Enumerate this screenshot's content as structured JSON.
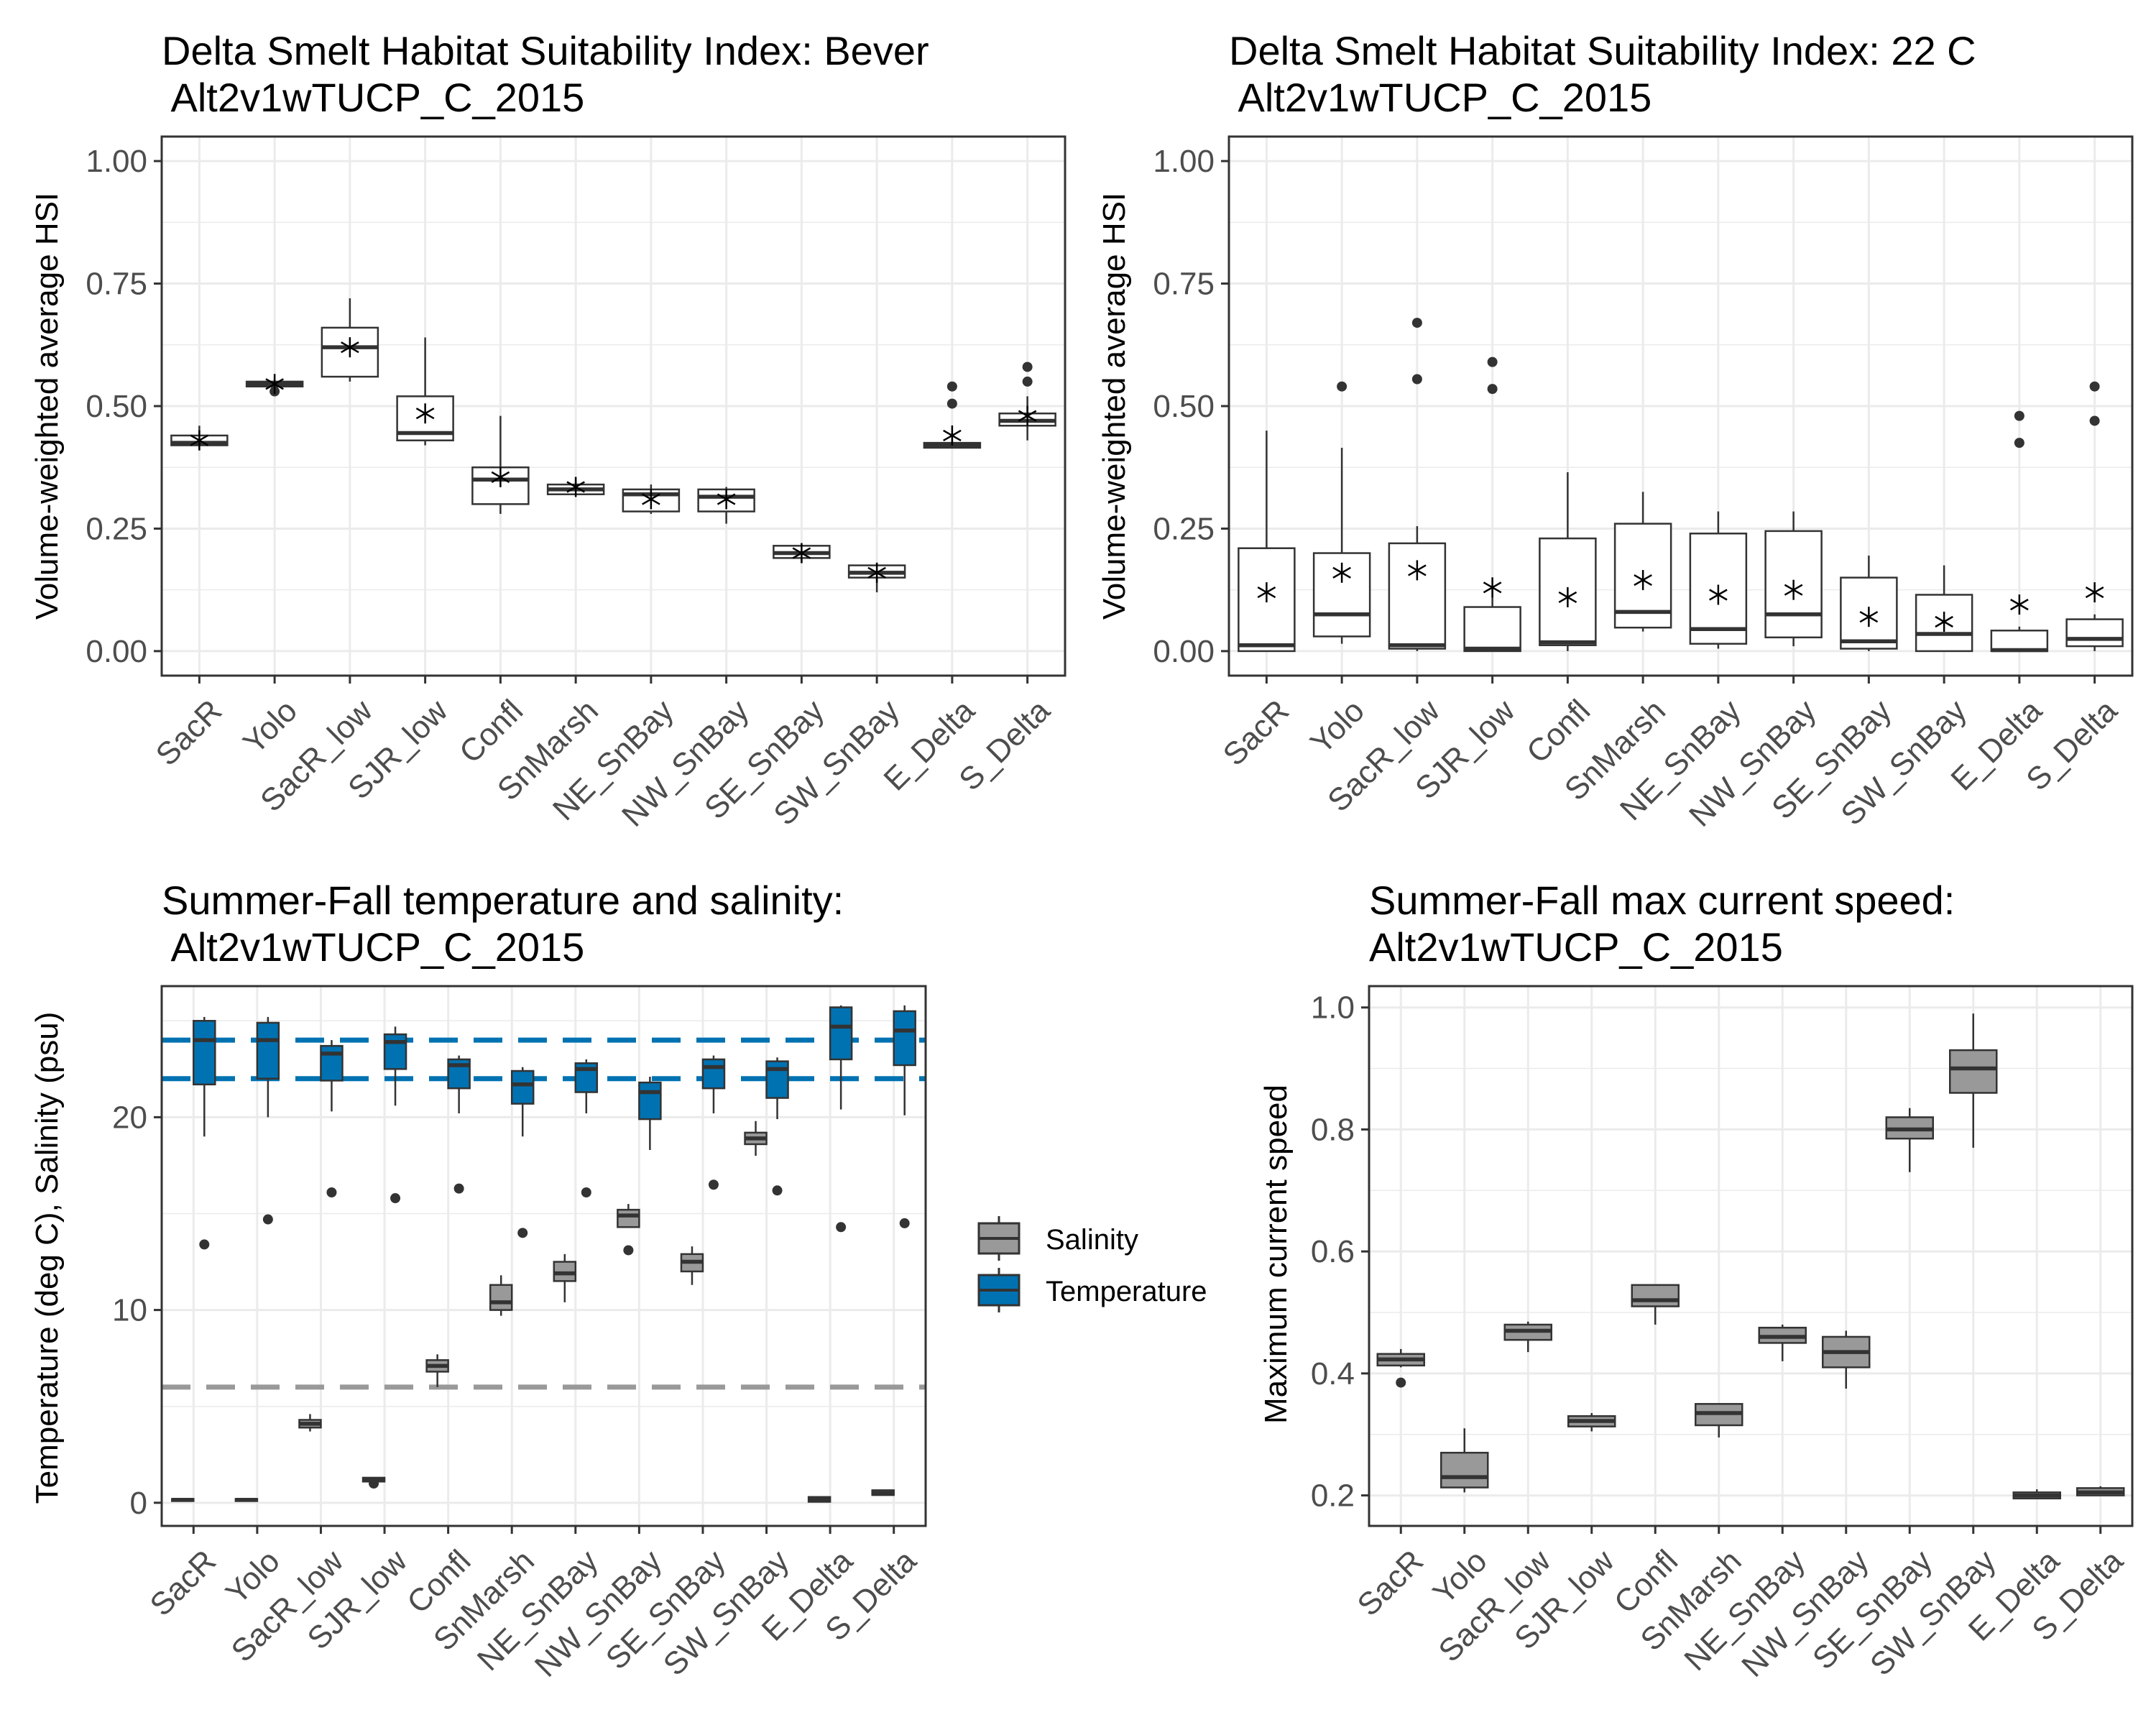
{
  "colors": {
    "grid": "#ebebeb",
    "axis": "#333333",
    "box_fill": "#ffffff",
    "salinity": "#999999",
    "temperature": "#0072b2",
    "salinity_ref": "#999999",
    "temperature_ref": "#0072b2"
  },
  "chart_data": [
    {
      "type": "box",
      "title": "Delta Smelt Habitat Suitability Index: Bever",
      "subtitle": " Alt2v1wTUCP_C_2015",
      "xlabel": "",
      "ylabel": "Volume-weighted average HSI",
      "ylim": [
        -0.05,
        1.05
      ],
      "yticks": [
        0,
        0.25,
        0.5,
        0.75,
        1
      ],
      "ytick_labels": [
        "0.00",
        "0.25",
        "0.50",
        "0.75",
        "1.00"
      ],
      "grid": true,
      "categories": [
        "SacR",
        "Yolo",
        "SacR_low",
        "SJR_low",
        "Confl",
        "SnMarsh",
        "NE_SnBay",
        "NW_SnBay",
        "SE_SnBay",
        "SW_SnBay",
        "E_Delta",
        "S_Delta"
      ],
      "series": [
        {
          "fill": "box_fill",
          "boxes": [
            {
              "low": 0.42,
              "q1": 0.42,
              "median": 0.425,
              "q3": 0.44,
              "high": 0.46,
              "mean": 0.43,
              "outliers": []
            },
            {
              "low": 0.54,
              "q1": 0.54,
              "median": 0.545,
              "q3": 0.55,
              "high": 0.555,
              "mean": 0.545,
              "outliers": [
                0.53
              ]
            },
            {
              "low": 0.55,
              "q1": 0.56,
              "median": 0.62,
              "q3": 0.66,
              "high": 0.72,
              "mean": 0.62,
              "outliers": []
            },
            {
              "low": 0.42,
              "q1": 0.43,
              "median": 0.445,
              "q3": 0.52,
              "high": 0.64,
              "mean": 0.485,
              "outliers": []
            },
            {
              "low": 0.28,
              "q1": 0.3,
              "median": 0.35,
              "q3": 0.375,
              "high": 0.48,
              "mean": 0.355,
              "outliers": []
            },
            {
              "low": 0.32,
              "q1": 0.32,
              "median": 0.33,
              "q3": 0.34,
              "high": 0.35,
              "mean": 0.335,
              "outliers": []
            },
            {
              "low": 0.28,
              "q1": 0.285,
              "median": 0.32,
              "q3": 0.33,
              "high": 0.34,
              "mean": 0.31,
              "outliers": []
            },
            {
              "low": 0.26,
              "q1": 0.285,
              "median": 0.315,
              "q3": 0.33,
              "high": 0.335,
              "mean": 0.31,
              "outliers": []
            },
            {
              "low": 0.18,
              "q1": 0.19,
              "median": 0.2,
              "q3": 0.215,
              "high": 0.215,
              "mean": 0.2,
              "outliers": []
            },
            {
              "low": 0.12,
              "q1": 0.15,
              "median": 0.16,
              "q3": 0.175,
              "high": 0.18,
              "mean": 0.16,
              "outliers": []
            },
            {
              "low": 0.415,
              "q1": 0.415,
              "median": 0.42,
              "q3": 0.425,
              "high": 0.43,
              "mean": 0.44,
              "outliers": [
                0.505,
                0.54
              ]
            },
            {
              "low": 0.43,
              "q1": 0.46,
              "median": 0.47,
              "q3": 0.485,
              "high": 0.52,
              "mean": 0.48,
              "outliers": [
                0.55,
                0.58
              ]
            }
          ]
        }
      ]
    },
    {
      "type": "box",
      "title": "Delta Smelt Habitat Suitability Index: 22 C",
      "subtitle": " Alt2v1wTUCP_C_2015",
      "xlabel": "",
      "ylabel": "Volume-weighted average HSI",
      "ylim": [
        -0.05,
        1.05
      ],
      "yticks": [
        0,
        0.25,
        0.5,
        0.75,
        1
      ],
      "ytick_labels": [
        "0.00",
        "0.25",
        "0.50",
        "0.75",
        "1.00"
      ],
      "grid": true,
      "categories": [
        "SacR",
        "Yolo",
        "SacR_low",
        "SJR_low",
        "Confl",
        "SnMarsh",
        "NE_SnBay",
        "NW_SnBay",
        "SE_SnBay",
        "SW_SnBay",
        "E_Delta",
        "S_Delta"
      ],
      "series": [
        {
          "fill": "box_fill",
          "boxes": [
            {
              "low": 0.0,
              "q1": 0.0,
              "median": 0.012,
              "q3": 0.21,
              "high": 0.45,
              "mean": 0.12,
              "outliers": []
            },
            {
              "low": 0.015,
              "q1": 0.03,
              "median": 0.075,
              "q3": 0.2,
              "high": 0.415,
              "mean": 0.16,
              "outliers": [
                0.54
              ]
            },
            {
              "low": 0.0,
              "q1": 0.005,
              "median": 0.012,
              "q3": 0.22,
              "high": 0.255,
              "mean": 0.165,
              "outliers": [
                0.555,
                0.67
              ]
            },
            {
              "low": 0.0,
              "q1": 0.0,
              "median": 0.005,
              "q3": 0.09,
              "high": 0.13,
              "mean": 0.13,
              "outliers": [
                0.535,
                0.59
              ]
            },
            {
              "low": 0.0,
              "q1": 0.012,
              "median": 0.018,
              "q3": 0.23,
              "high": 0.365,
              "mean": 0.11,
              "outliers": []
            },
            {
              "low": 0.04,
              "q1": 0.048,
              "median": 0.08,
              "q3": 0.26,
              "high": 0.325,
              "mean": 0.145,
              "outliers": []
            },
            {
              "low": 0.005,
              "q1": 0.015,
              "median": 0.045,
              "q3": 0.24,
              "high": 0.285,
              "mean": 0.115,
              "outliers": []
            },
            {
              "low": 0.01,
              "q1": 0.028,
              "median": 0.075,
              "q3": 0.245,
              "high": 0.285,
              "mean": 0.125,
              "outliers": []
            },
            {
              "low": 0.0,
              "q1": 0.005,
              "median": 0.02,
              "q3": 0.15,
              "high": 0.195,
              "mean": 0.07,
              "outliers": []
            },
            {
              "low": 0.0,
              "q1": 0.0,
              "median": 0.035,
              "q3": 0.115,
              "high": 0.175,
              "mean": 0.06,
              "outliers": []
            },
            {
              "low": 0.0,
              "q1": 0.0,
              "median": 0.002,
              "q3": 0.042,
              "high": 0.05,
              "mean": 0.095,
              "outliers": [
                0.425,
                0.48
              ]
            },
            {
              "low": 0.0,
              "q1": 0.01,
              "median": 0.025,
              "q3": 0.065,
              "high": 0.075,
              "mean": 0.12,
              "outliers": [
                0.47,
                0.54
              ]
            }
          ]
        }
      ]
    },
    {
      "type": "box",
      "title": "Summer-Fall temperature and salinity:",
      "subtitle": " Alt2v1wTUCP_C_2015",
      "xlabel": "",
      "ylabel": "Temperature (deg C), Salinity (psu)",
      "ylim": [
        -1.2,
        26.8
      ],
      "yticks": [
        0,
        10,
        20
      ],
      "ytick_labels": [
        "0",
        "10",
        "20"
      ],
      "grid": true,
      "legend_position": "right",
      "legend": [
        "Salinity",
        "Temperature"
      ],
      "reference_lines": [
        {
          "y": 6,
          "series": "Salinity"
        },
        {
          "y": 22,
          "series": "Temperature"
        },
        {
          "y": 24,
          "series": "Temperature"
        }
      ],
      "categories": [
        "SacR",
        "Yolo",
        "SacR_low",
        "SJR_low",
        "Confl",
        "SnMarsh",
        "NE_SnBay",
        "NW_SnBay",
        "SE_SnBay",
        "SW_SnBay",
        "E_Delta",
        "S_Delta"
      ],
      "series": [
        {
          "name": "Salinity",
          "fill": "salinity",
          "boxes": [
            {
              "low": 0.15,
              "q1": 0.15,
              "median": 0.15,
              "q3": 0.2,
              "high": 0.2,
              "outliers": []
            },
            {
              "low": 0.15,
              "q1": 0.15,
              "median": 0.15,
              "q3": 0.2,
              "high": 0.2,
              "outliers": []
            },
            {
              "low": 3.7,
              "q1": 3.9,
              "median": 4.1,
              "q3": 4.3,
              "high": 4.6,
              "outliers": []
            },
            {
              "low": 1.1,
              "q1": 1.1,
              "median": 1.2,
              "q3": 1.3,
              "high": 1.3,
              "outliers": [
                1.0
              ]
            },
            {
              "low": 6.0,
              "q1": 6.8,
              "median": 7.1,
              "q3": 7.4,
              "high": 7.7,
              "outliers": []
            },
            {
              "low": 9.7,
              "q1": 10.0,
              "median": 10.4,
              "q3": 11.3,
              "high": 11.8,
              "outliers": []
            },
            {
              "low": 10.4,
              "q1": 11.5,
              "median": 11.9,
              "q3": 12.5,
              "high": 12.9,
              "outliers": []
            },
            {
              "low": 14.3,
              "q1": 14.3,
              "median": 14.9,
              "q3": 15.2,
              "high": 15.5,
              "outliers": [
                13.1
              ]
            },
            {
              "low": 11.3,
              "q1": 12.0,
              "median": 12.5,
              "q3": 12.9,
              "high": 13.3,
              "outliers": []
            },
            {
              "low": 18.0,
              "q1": 18.6,
              "median": 18.9,
              "q3": 19.2,
              "high": 19.8,
              "outliers": []
            },
            {
              "low": 0.05,
              "q1": 0.05,
              "median": 0.15,
              "q3": 0.3,
              "high": 0.3,
              "outliers": []
            },
            {
              "low": 0.4,
              "q1": 0.4,
              "median": 0.5,
              "q3": 0.65,
              "high": 0.65,
              "outliers": []
            }
          ]
        },
        {
          "name": "Temperature",
          "fill": "temperature",
          "boxes": [
            {
              "low": 19.0,
              "q1": 21.7,
              "median": 24.0,
              "q3": 25.0,
              "high": 25.2,
              "outliers": [
                13.4
              ]
            },
            {
              "low": 20.0,
              "q1": 22.0,
              "median": 24.0,
              "q3": 24.9,
              "high": 25.2,
              "outliers": [
                14.7
              ]
            },
            {
              "low": 20.3,
              "q1": 21.9,
              "median": 23.3,
              "q3": 23.7,
              "high": 24.0,
              "outliers": [
                16.1
              ]
            },
            {
              "low": 20.6,
              "q1": 22.5,
              "median": 23.9,
              "q3": 24.3,
              "high": 24.7,
              "outliers": [
                15.8
              ]
            },
            {
              "low": 20.2,
              "q1": 21.5,
              "median": 22.7,
              "q3": 23.0,
              "high": 23.2,
              "outliers": [
                16.3
              ]
            },
            {
              "low": 19.0,
              "q1": 20.7,
              "median": 21.7,
              "q3": 22.4,
              "high": 22.6,
              "outliers": [
                14.0
              ]
            },
            {
              "low": 20.2,
              "q1": 21.3,
              "median": 22.5,
              "q3": 22.8,
              "high": 23.0,
              "outliers": [
                16.1
              ]
            },
            {
              "low": 18.3,
              "q1": 19.9,
              "median": 21.3,
              "q3": 21.8,
              "high": 22.1,
              "outliers": []
            },
            {
              "low": 20.2,
              "q1": 21.5,
              "median": 22.6,
              "q3": 23.0,
              "high": 23.2,
              "outliers": [
                16.5
              ]
            },
            {
              "low": 19.9,
              "q1": 21.0,
              "median": 22.5,
              "q3": 22.9,
              "high": 23.1,
              "outliers": [
                16.2
              ]
            },
            {
              "low": 20.4,
              "q1": 23.0,
              "median": 24.7,
              "q3": 25.7,
              "high": 25.8,
              "outliers": [
                14.3
              ]
            },
            {
              "low": 20.1,
              "q1": 22.7,
              "median": 24.5,
              "q3": 25.5,
              "high": 25.8,
              "outliers": [
                14.5
              ]
            }
          ]
        }
      ]
    },
    {
      "type": "box",
      "title": "Summer-Fall max current speed:",
      "subtitle": "Alt2v1wTUCP_C_2015",
      "xlabel": "",
      "ylabel": "Maximum current speed",
      "ylim": [
        0.15,
        1.035
      ],
      "yticks": [
        0.2,
        0.4,
        0.6,
        0.8,
        1.0
      ],
      "ytick_labels": [
        "0.2",
        "0.4",
        "0.6",
        "0.8",
        "1.0"
      ],
      "grid": true,
      "categories": [
        "SacR",
        "Yolo",
        "SacR_low",
        "SJR_low",
        "Confl",
        "SnMarsh",
        "NE_SnBay",
        "NW_SnBay",
        "SE_SnBay",
        "SW_SnBay",
        "E_Delta",
        "S_Delta"
      ],
      "series": [
        {
          "fill": "salinity",
          "boxes": [
            {
              "low": 0.41,
              "q1": 0.413,
              "median": 0.423,
              "q3": 0.432,
              "high": 0.44,
              "outliers": [
                0.385
              ]
            },
            {
              "low": 0.205,
              "q1": 0.213,
              "median": 0.23,
              "q3": 0.27,
              "high": 0.31,
              "outliers": []
            },
            {
              "low": 0.435,
              "q1": 0.455,
              "median": 0.47,
              "q3": 0.48,
              "high": 0.485,
              "outliers": []
            },
            {
              "low": 0.305,
              "q1": 0.313,
              "median": 0.322,
              "q3": 0.33,
              "high": 0.335,
              "outliers": []
            },
            {
              "low": 0.48,
              "q1": 0.51,
              "median": 0.52,
              "q3": 0.545,
              "high": 0.545,
              "outliers": []
            },
            {
              "low": 0.295,
              "q1": 0.315,
              "median": 0.335,
              "q3": 0.35,
              "high": 0.35,
              "outliers": []
            },
            {
              "low": 0.42,
              "q1": 0.45,
              "median": 0.46,
              "q3": 0.475,
              "high": 0.48,
              "outliers": []
            },
            {
              "low": 0.375,
              "q1": 0.41,
              "median": 0.435,
              "q3": 0.46,
              "high": 0.47,
              "outliers": []
            },
            {
              "low": 0.73,
              "q1": 0.785,
              "median": 0.8,
              "q3": 0.82,
              "high": 0.835,
              "outliers": []
            },
            {
              "low": 0.77,
              "q1": 0.86,
              "median": 0.9,
              "q3": 0.93,
              "high": 0.99,
              "outliers": []
            },
            {
              "low": 0.195,
              "q1": 0.195,
              "median": 0.2,
              "q3": 0.205,
              "high": 0.21,
              "outliers": []
            },
            {
              "low": 0.2,
              "q1": 0.2,
              "median": 0.205,
              "q3": 0.212,
              "high": 0.215,
              "outliers": []
            }
          ]
        }
      ]
    }
  ]
}
